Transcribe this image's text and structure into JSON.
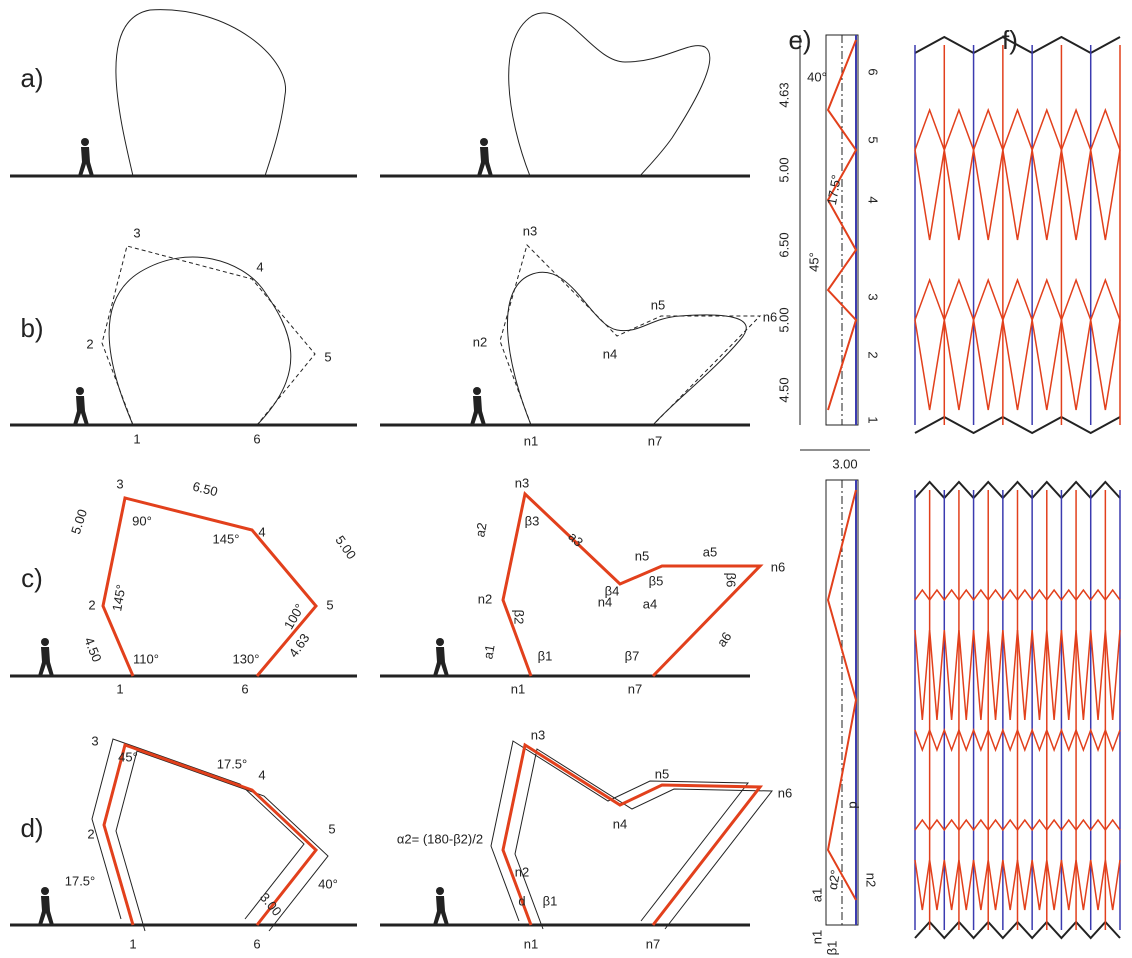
{
  "panel_labels": [
    "a)",
    "b)",
    "c)",
    "d)",
    "e)",
    "f)"
  ],
  "b": {
    "left_nodes": [
      "1",
      "2",
      "3",
      "4",
      "5",
      "6"
    ],
    "right_nodes": [
      "n1",
      "n2",
      "n3",
      "n4",
      "n5",
      "n6",
      "n7"
    ]
  },
  "c": {
    "left_nodes": [
      "1",
      "2",
      "3",
      "4",
      "5",
      "6"
    ],
    "right_nodes": [
      "n1",
      "n2",
      "n3",
      "n4",
      "n5",
      "n6",
      "n7"
    ],
    "lengths": [
      "6.50",
      "5.00",
      "5.00",
      "4.50",
      "4.63"
    ],
    "angles": [
      "90°",
      "145°",
      "145°",
      "100°",
      "110°",
      "130°"
    ],
    "members": [
      "a1",
      "a2",
      "a3",
      "a4",
      "a5",
      "a6"
    ],
    "betas": [
      "β1",
      "β2",
      "β3",
      "β4",
      "β5",
      "β6",
      "β7"
    ]
  },
  "d": {
    "left_nodes": [
      "3",
      "4",
      "2",
      "5",
      "1",
      "6"
    ],
    "angles": [
      "45°",
      "17.5°",
      "17.5°",
      "40°"
    ],
    "width": "3.00",
    "right_nodes": [
      "n1",
      "n2",
      "n3",
      "n4",
      "n5",
      "n6",
      "n7"
    ],
    "formula": "α2= (180-β2)/2",
    "offset": "d",
    "beta": "β1"
  },
  "e": {
    "lengths": [
      "4.63",
      "5.00",
      "6.50",
      "5.00",
      "4.50"
    ],
    "nodes": [
      "6",
      "5",
      "4",
      "3",
      "2",
      "1"
    ],
    "angles": [
      "40°",
      "17.5°",
      "45°"
    ],
    "width": "3.00",
    "lower_labels": [
      "d",
      "α2°",
      "n2",
      "a1",
      "n1",
      "β1"
    ]
  }
}
